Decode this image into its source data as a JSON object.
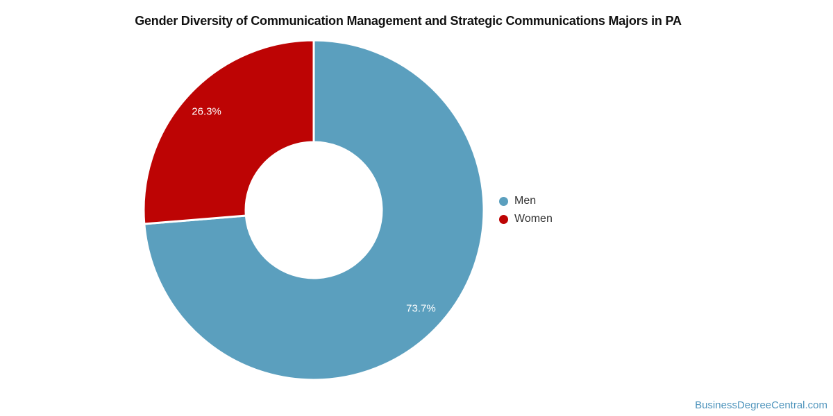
{
  "title": "Gender Diversity of Communication Management and Strategic Communications Majors in PA",
  "chart_data": {
    "type": "pie",
    "donut": true,
    "hole_ratio": 0.4,
    "categories": [
      "Men",
      "Women"
    ],
    "values": [
      73.7,
      26.3
    ],
    "value_labels": [
      "73.7%",
      "26.3%"
    ],
    "colors": [
      "#5b9fbe",
      "#bd0404"
    ],
    "title": "Gender Diversity of Communication Management and Strategic Communications Majors in PA",
    "legend_position": "right",
    "start_angle_deg": 0,
    "direction": "clockwise",
    "slice_separator_color": "#ffffff"
  },
  "legend": {
    "items": [
      {
        "label": "Men",
        "color": "#5b9fbe"
      },
      {
        "label": "Women",
        "color": "#bd0404"
      }
    ]
  },
  "footer": {
    "link_label": "BusinessDegreeCentral.com",
    "link_color": "#4e94bc"
  }
}
